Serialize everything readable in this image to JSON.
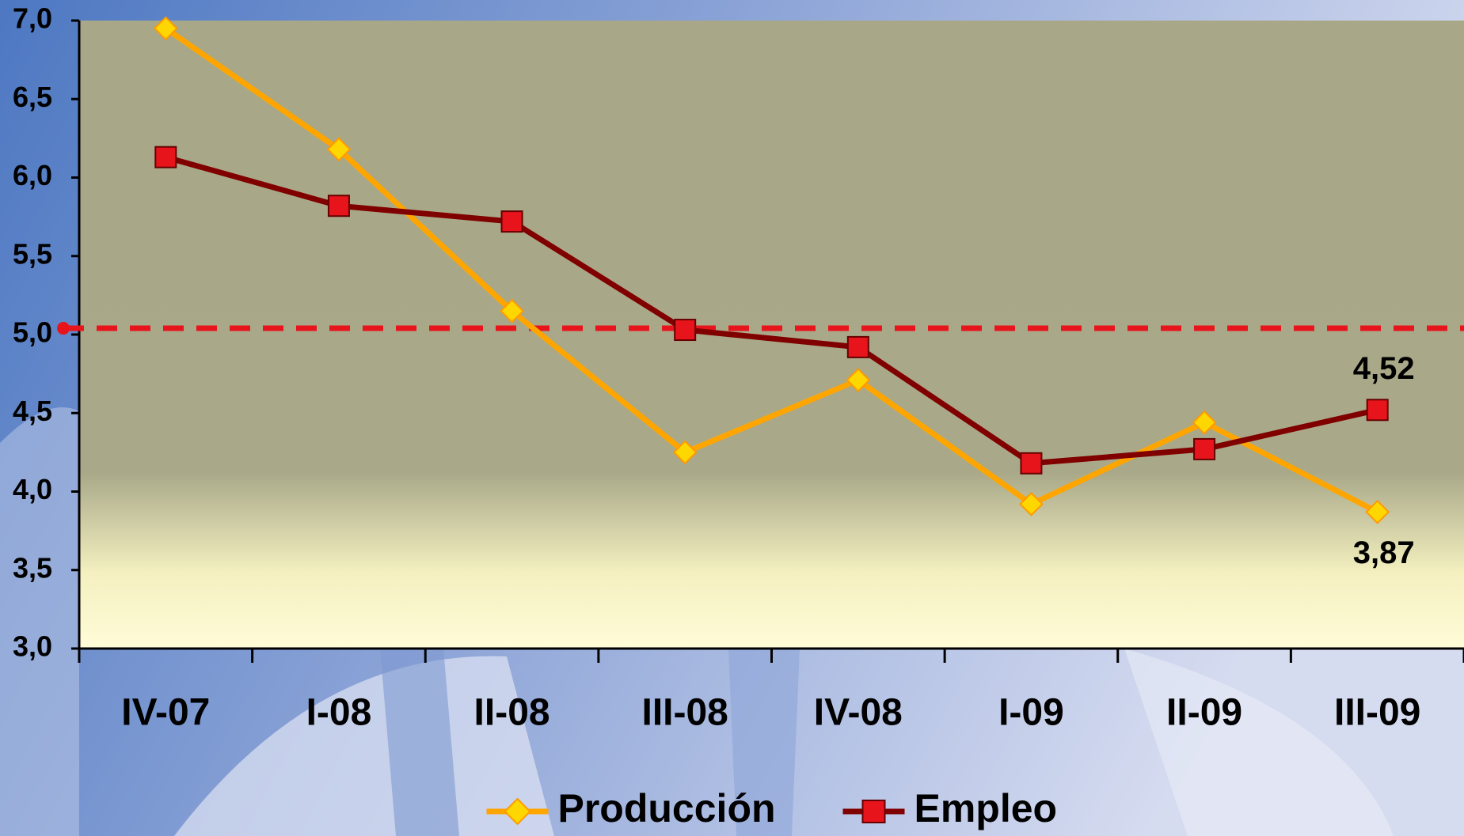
{
  "chart_data": {
    "type": "line",
    "categories": [
      "IV-07",
      "I-08",
      "II-08",
      "III-08",
      "IV-08",
      "I-09",
      "II-09",
      "III-09"
    ],
    "series": [
      {
        "name": "Producción",
        "color": "#ffa500",
        "marker": "diamond",
        "marker_color": "#ffd700",
        "values": [
          6.95,
          6.18,
          5.15,
          4.25,
          4.71,
          3.92,
          4.44,
          3.87
        ],
        "value_labels": [
          null,
          null,
          null,
          null,
          null,
          null,
          null,
          "3,87"
        ]
      },
      {
        "name": "Empleo",
        "color": "#800000",
        "marker": "square",
        "marker_color": "#e8141b",
        "values": [
          6.13,
          5.82,
          5.72,
          5.03,
          4.92,
          4.18,
          4.27,
          4.52
        ],
        "value_labels": [
          null,
          null,
          null,
          null,
          null,
          null,
          null,
          "4,52"
        ]
      }
    ],
    "ylim": [
      3.0,
      7.0
    ],
    "yticks": [
      {
        "value": 3.0,
        "label": "3,0"
      },
      {
        "value": 3.5,
        "label": "3,5"
      },
      {
        "value": 4.0,
        "label": "4,0"
      },
      {
        "value": 4.5,
        "label": "4,5"
      },
      {
        "value": 5.0,
        "label": "5,0"
      },
      {
        "value": 5.5,
        "label": "5,5"
      },
      {
        "value": 6.0,
        "label": "6,0"
      },
      {
        "value": 6.5,
        "label": "6,5"
      },
      {
        "value": 7.0,
        "label": "7,0"
      }
    ],
    "reference_line": {
      "value": 5.04,
      "color": "#e8141b"
    },
    "grid": false,
    "legend": "bottom"
  }
}
